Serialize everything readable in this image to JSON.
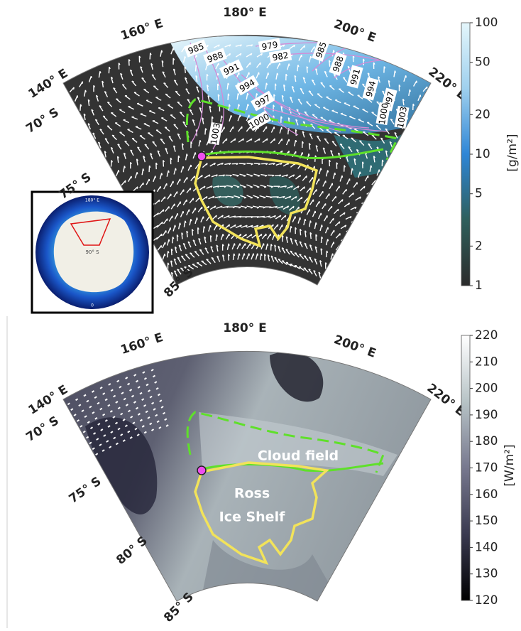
{
  "top_panel": {
    "lon_labels": [
      "140° E",
      "160° E",
      "180° E",
      "200° E",
      "220° E"
    ],
    "lat_labels": [
      "70° S",
      "75° S",
      "85° S"
    ],
    "contour_labels": [
      985,
      988,
      991,
      994,
      997,
      1000,
      1003,
      979,
      982,
      985,
      988,
      991,
      994,
      997,
      1000,
      1003
    ],
    "colorbar": {
      "label": "[g/m²]",
      "scale": "log",
      "lim": [
        1,
        100
      ],
      "ticks": [
        1,
        2,
        5,
        10,
        20,
        50,
        100
      ],
      "colors": [
        "#2b2b2b",
        "#2f5f5c",
        "#2f86d6",
        "#9fd0ee",
        "#e4f6fb"
      ]
    }
  },
  "inset": {
    "labels": [
      "180° E",
      "90° S",
      "0"
    ]
  },
  "bottom_panel": {
    "lon_labels": [
      "140° E",
      "160° E",
      "180° E",
      "200° E",
      "220° E"
    ],
    "lat_labels": [
      "70° S",
      "75° S",
      "80° S",
      "85° S"
    ],
    "annotations": [
      "Cloud field",
      "Ross",
      "Ice Shelf"
    ],
    "colorbar": {
      "label": "[W/m²]",
      "scale": "linear",
      "lim": [
        120,
        220
      ],
      "ticks": [
        120,
        130,
        140,
        150,
        160,
        170,
        180,
        190,
        200,
        210,
        220
      ],
      "colors": [
        "#000000",
        "#3a3a50",
        "#77788e",
        "#b7c3c6",
        "#ffffff"
      ]
    }
  }
}
